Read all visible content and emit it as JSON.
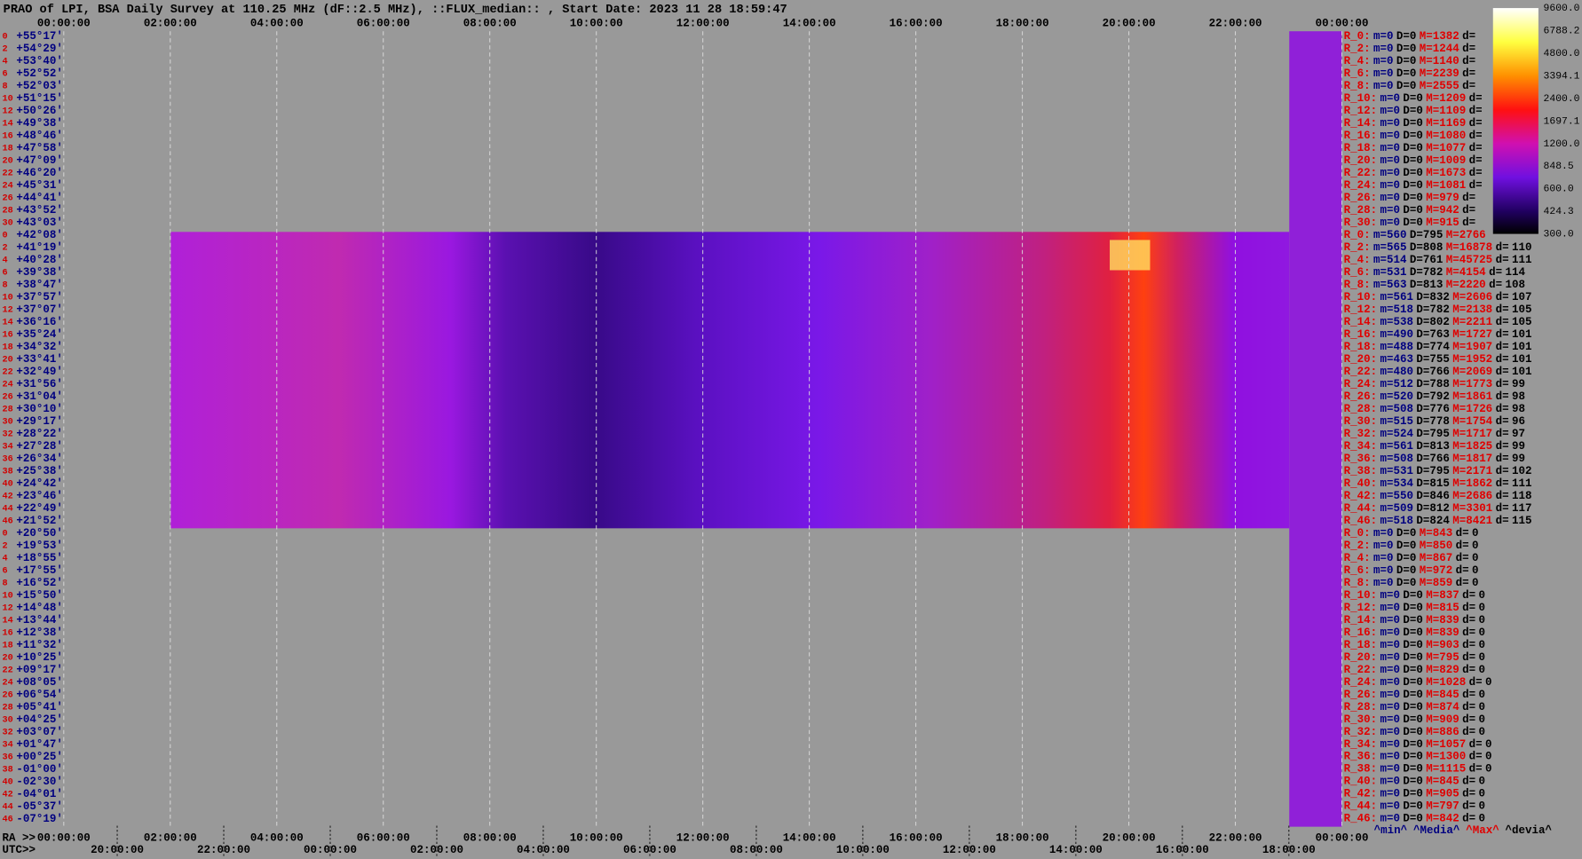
{
  "title": "PRAO of LPI, BSA Daily Survey at 110.25 MHz (dF::2.5 MHz), ::FLUX_median:: , Start Date: 2023 11 28 18:59:47",
  "time_top": [
    "00:00:00",
    "02:00:00",
    "04:00:00",
    "06:00:00",
    "08:00:00",
    "10:00:00",
    "12:00:00",
    "14:00:00",
    "16:00:00",
    "18:00:00",
    "20:00:00",
    "22:00:00",
    "00:00:00"
  ],
  "ra_prefix": "RA >>",
  "time_ra": [
    "00:00:00",
    "02:00:00",
    "04:00:00",
    "06:00:00",
    "08:00:00",
    "10:00:00",
    "12:00:00",
    "14:00:00",
    "16:00:00",
    "18:00:00",
    "20:00:00",
    "22:00:00",
    "00:00:00"
  ],
  "utc_prefix": "UTC>>",
  "time_utc": [
    "20:00:00",
    "22:00:00",
    "00:00:00",
    "02:00:00",
    "04:00:00",
    "06:00:00",
    "08:00:00",
    "10:00:00",
    "12:00:00",
    "14:00:00",
    "16:00:00",
    "18:00:00"
  ],
  "beam_numbers": [
    0,
    2,
    4,
    6,
    8,
    10,
    12,
    14,
    16,
    18,
    20,
    22,
    24,
    26,
    28,
    30,
    0,
    2,
    4,
    6,
    8,
    10,
    12,
    14,
    16,
    18,
    20,
    22,
    24,
    26,
    28,
    30,
    32,
    34,
    36,
    38,
    40,
    42,
    44,
    46,
    0,
    2,
    4,
    6,
    8,
    10,
    12,
    14,
    16,
    18,
    20,
    22,
    24,
    26,
    28,
    30,
    32,
    34,
    36,
    38,
    40,
    42,
    44,
    46
  ],
  "declinations": [
    "+55°17′",
    "+54°29′",
    "+53°40′",
    "+52°52′",
    "+52°03′",
    "+51°15′",
    "+50°26′",
    "+49°38′",
    "+48°46′",
    "+47°58′",
    "+47°09′",
    "+46°20′",
    "+45°31′",
    "+44°41′",
    "+43°52′",
    "+43°03′",
    "+42°08′",
    "+41°19′",
    "+40°28′",
    "+39°38′",
    "+38°47′",
    "+37°57′",
    "+37°07′",
    "+36°16′",
    "+35°24′",
    "+34°32′",
    "+33°41′",
    "+32°49′",
    "+31°56′",
    "+31°04′",
    "+30°10′",
    "+29°17′",
    "+28°22′",
    "+27°28′",
    "+26°34′",
    "+25°38′",
    "+24°42′",
    "+23°46′",
    "+22°49′",
    "+21°52′",
    "+20°50′",
    "+19°53′",
    "+18°55′",
    "+17°55′",
    "+16°52′",
    "+15°50′",
    "+14°48′",
    "+13°44′",
    "+12°38′",
    "+11°32′",
    "+10°25′",
    "+09°17′",
    "+08°05′",
    "+06°54′",
    "+05°41′",
    "+04°25′",
    "+03°07′",
    "+01°47′",
    "+00°25′",
    "-01°00′",
    "-02°30′",
    "-04°01′",
    "-05°37′",
    "-07°19′"
  ],
  "field_labels": {
    "m": "m=",
    "D": "D=",
    "M": "M=",
    "d": "d="
  },
  "beam_table": [
    {
      "beam": "R_0:",
      "m": 0,
      "D": 0,
      "M": 1382
    },
    {
      "beam": "R_2:",
      "m": 0,
      "D": 0,
      "M": 1244
    },
    {
      "beam": "R_4:",
      "m": 0,
      "D": 0,
      "M": 1140
    },
    {
      "beam": "R_6:",
      "m": 0,
      "D": 0,
      "M": 2239
    },
    {
      "beam": "R_8:",
      "m": 0,
      "D": 0,
      "M": 2555
    },
    {
      "beam": "R_10:",
      "m": 0,
      "D": 0,
      "M": 1209
    },
    {
      "beam": "R_12:",
      "m": 0,
      "D": 0,
      "M": 1109
    },
    {
      "beam": "R_14:",
      "m": 0,
      "D": 0,
      "M": 1169
    },
    {
      "beam": "R_16:",
      "m": 0,
      "D": 0,
      "M": 1080
    },
    {
      "beam": "R_18:",
      "m": 0,
      "D": 0,
      "M": 1077
    },
    {
      "beam": "R_20:",
      "m": 0,
      "D": 0,
      "M": 1009
    },
    {
      "beam": "R_22:",
      "m": 0,
      "D": 0,
      "M": 1673
    },
    {
      "beam": "R_24:",
      "m": 0,
      "D": 0,
      "M": 1081
    },
    {
      "beam": "R_26:",
      "m": 0,
      "D": 0,
      "M": 979
    },
    {
      "beam": "R_28:",
      "m": 0,
      "D": 0,
      "M": 942
    },
    {
      "beam": "R_30:",
      "m": 0,
      "D": 0,
      "M": 915
    },
    {
      "beam": "R_0:",
      "m": 560,
      "D": 795,
      "M": 2766
    },
    {
      "beam": "R_2:",
      "m": 565,
      "D": 808,
      "M": 16878,
      "d": 110
    },
    {
      "beam": "R_4:",
      "m": 514,
      "D": 761,
      "M": 45725,
      "d": 111
    },
    {
      "beam": "R_6:",
      "m": 531,
      "D": 782,
      "M": 4154,
      "d": 114
    },
    {
      "beam": "R_8:",
      "m": 563,
      "D": 813,
      "M": 2220,
      "d": 108
    },
    {
      "beam": "R_10:",
      "m": 561,
      "D": 832,
      "M": 2606,
      "d": 107
    },
    {
      "beam": "R_12:",
      "m": 518,
      "D": 782,
      "M": 2138,
      "d": 105
    },
    {
      "beam": "R_14:",
      "m": 538,
      "D": 802,
      "M": 2211,
      "d": 105
    },
    {
      "beam": "R_16:",
      "m": 490,
      "D": 763,
      "M": 1727,
      "d": 101
    },
    {
      "beam": "R_18:",
      "m": 488,
      "D": 774,
      "M": 1907,
      "d": 101
    },
    {
      "beam": "R_20:",
      "m": 463,
      "D": 755,
      "M": 1952,
      "d": 101
    },
    {
      "beam": "R_22:",
      "m": 480,
      "D": 766,
      "M": 2069,
      "d": 101
    },
    {
      "beam": "R_24:",
      "m": 512,
      "D": 788,
      "M": 1773,
      "d": 99
    },
    {
      "beam": "R_26:",
      "m": 520,
      "D": 792,
      "M": 1861,
      "d": 98
    },
    {
      "beam": "R_28:",
      "m": 508,
      "D": 776,
      "M": 1726,
      "d": 98
    },
    {
      "beam": "R_30:",
      "m": 515,
      "D": 778,
      "M": 1754,
      "d": 96
    },
    {
      "beam": "R_32:",
      "m": 524,
      "D": 795,
      "M": 1717,
      "d": 97
    },
    {
      "beam": "R_34:",
      "m": 561,
      "D": 813,
      "M": 1825,
      "d": 99
    },
    {
      "beam": "R_36:",
      "m": 508,
      "D": 766,
      "M": 1817,
      "d": 99
    },
    {
      "beam": "R_38:",
      "m": 531,
      "D": 795,
      "M": 2171,
      "d": 102
    },
    {
      "beam": "R_40:",
      "m": 534,
      "D": 815,
      "M": 1862,
      "d": 111
    },
    {
      "beam": "R_42:",
      "m": 550,
      "D": 846,
      "M": 2686,
      "d": 118
    },
    {
      "beam": "R_44:",
      "m": 509,
      "D": 812,
      "M": 3301,
      "d": 117
    },
    {
      "beam": "R_46:",
      "m": 518,
      "D": 824,
      "M": 8421,
      "d": 115
    },
    {
      "beam": "R_0:",
      "m": 0,
      "D": 0,
      "M": 843,
      "d": 0
    },
    {
      "beam": "R_2:",
      "m": 0,
      "D": 0,
      "M": 850,
      "d": 0
    },
    {
      "beam": "R_4:",
      "m": 0,
      "D": 0,
      "M": 867,
      "d": 0
    },
    {
      "beam": "R_6:",
      "m": 0,
      "D": 0,
      "M": 972,
      "d": 0
    },
    {
      "beam": "R_8:",
      "m": 0,
      "D": 0,
      "M": 859,
      "d": 0
    },
    {
      "beam": "R_10:",
      "m": 0,
      "D": 0,
      "M": 837,
      "d": 0
    },
    {
      "beam": "R_12:",
      "m": 0,
      "D": 0,
      "M": 815,
      "d": 0
    },
    {
      "beam": "R_14:",
      "m": 0,
      "D": 0,
      "M": 839,
      "d": 0
    },
    {
      "beam": "R_16:",
      "m": 0,
      "D": 0,
      "M": 839,
      "d": 0
    },
    {
      "beam": "R_18:",
      "m": 0,
      "D": 0,
      "M": 903,
      "d": 0
    },
    {
      "beam": "R_20:",
      "m": 0,
      "D": 0,
      "M": 795,
      "d": 0
    },
    {
      "beam": "R_22:",
      "m": 0,
      "D": 0,
      "M": 829,
      "d": 0
    },
    {
      "beam": "R_24:",
      "m": 0,
      "D": 0,
      "M": 1028,
      "d": 0
    },
    {
      "beam": "R_26:",
      "m": 0,
      "D": 0,
      "M": 845,
      "d": 0
    },
    {
      "beam": "R_28:",
      "m": 0,
      "D": 0,
      "M": 874,
      "d": 0
    },
    {
      "beam": "R_30:",
      "m": 0,
      "D": 0,
      "M": 909,
      "d": 0
    },
    {
      "beam": "R_32:",
      "m": 0,
      "D": 0,
      "M": 886,
      "d": 0
    },
    {
      "beam": "R_34:",
      "m": 0,
      "D": 0,
      "M": 1057,
      "d": 0
    },
    {
      "beam": "R_36:",
      "m": 0,
      "D": 0,
      "M": 1300,
      "d": 0
    },
    {
      "beam": "R_38:",
      "m": 0,
      "D": 0,
      "M": 1115,
      "d": 0
    },
    {
      "beam": "R_40:",
      "m": 0,
      "D": 0,
      "M": 845,
      "d": 0
    },
    {
      "beam": "R_42:",
      "m": 0,
      "D": 0,
      "M": 905,
      "d": 0
    },
    {
      "beam": "R_44:",
      "m": 0,
      "D": 0,
      "M": 797,
      "d": 0
    },
    {
      "beam": "R_46:",
      "m": 0,
      "D": 0,
      "M": 842,
      "d": 0
    }
  ],
  "colorbar_ticks": [
    {
      "value": 9600,
      "label": "9600.0"
    },
    {
      "value": 6788.2,
      "label": "6788.2"
    },
    {
      "value": 4800,
      "label": "4800.0"
    },
    {
      "value": 3394.1,
      "label": "3394.1"
    },
    {
      "value": 2400,
      "label": "2400.0"
    },
    {
      "value": 1697.1,
      "label": "1697.1"
    },
    {
      "value": 1200,
      "label": "1200.0"
    },
    {
      "value": 848.5,
      "label": "848.5"
    },
    {
      "value": 600,
      "label": "600.0"
    },
    {
      "value": 424.3,
      "label": "424.3"
    },
    {
      "value": 300,
      "label": "300.0"
    }
  ],
  "footer": [
    {
      "text": "^min^",
      "color": "#000080"
    },
    {
      "text": "^Media^",
      "color": "#000080"
    },
    {
      "text": "^Max^",
      "color": "#e00000"
    },
    {
      "text": "^devia^",
      "color": "#000000"
    }
  ]
}
